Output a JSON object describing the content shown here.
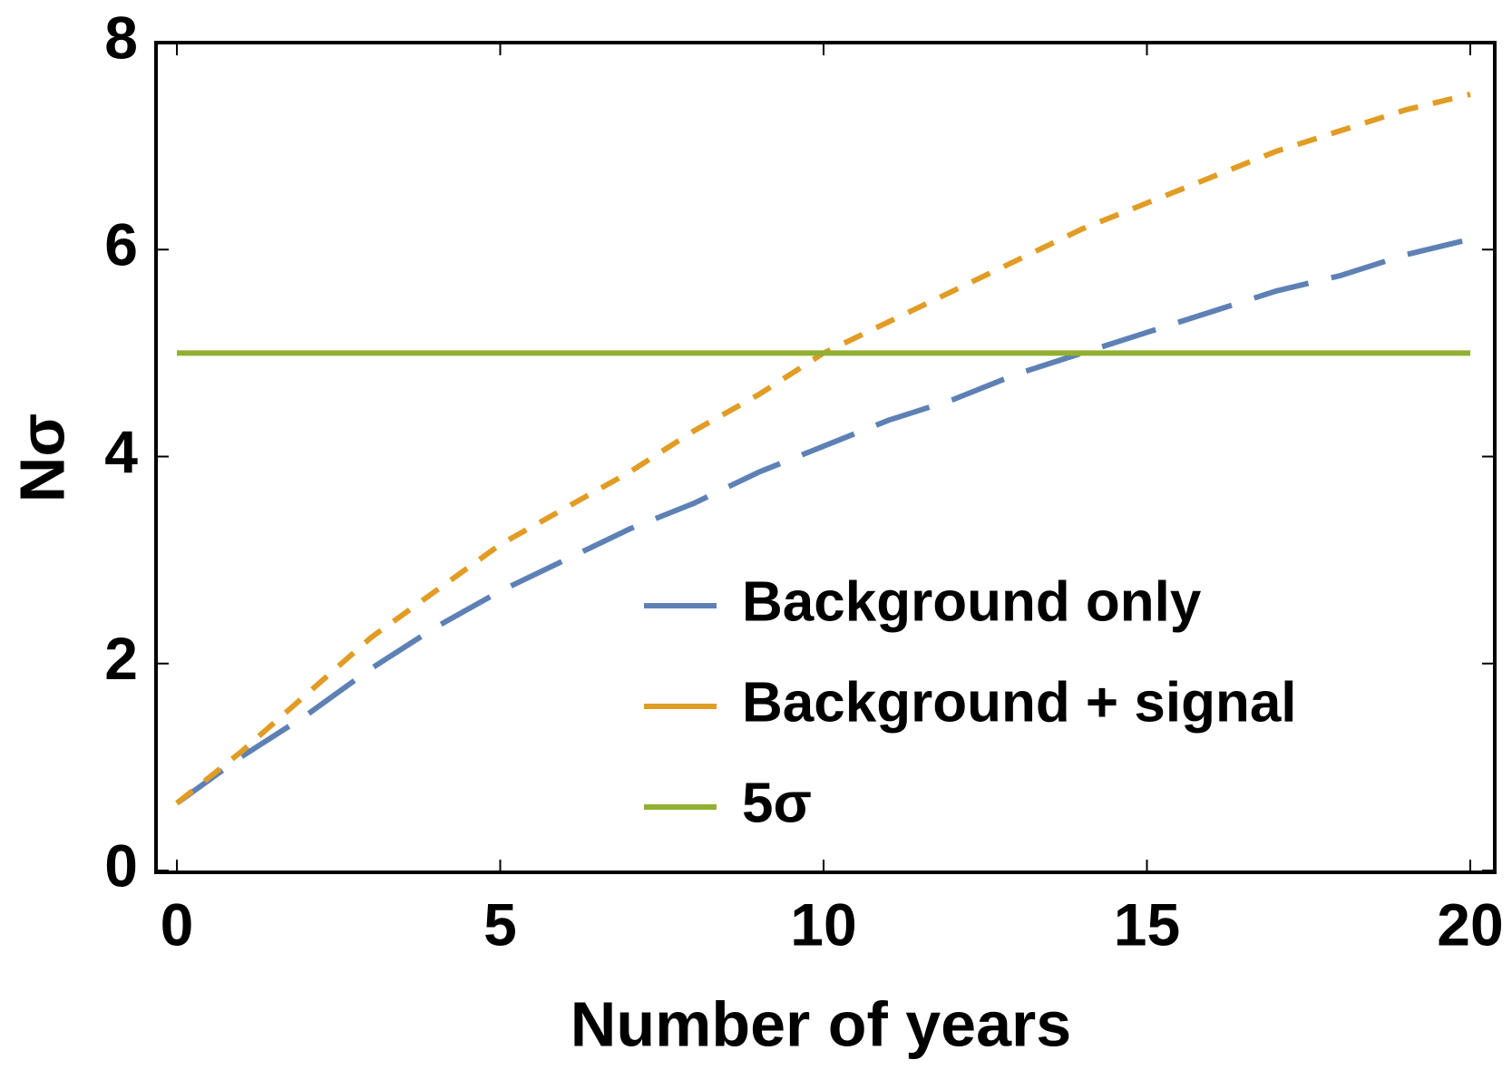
{
  "chart_data": {
    "type": "line",
    "xlabel": "Number of years",
    "ylabel": "Nσ",
    "x": [
      0,
      1,
      2,
      3,
      4,
      5,
      6,
      7,
      8,
      9,
      10,
      11,
      12,
      13,
      14,
      15,
      16,
      17,
      18,
      19,
      20
    ],
    "series": [
      {
        "name": "Background only",
        "color": "#5e81b5",
        "dash": "62 26",
        "values": [
          0.65,
          1.1,
          1.5,
          1.95,
          2.35,
          2.7,
          3.0,
          3.3,
          3.55,
          3.85,
          4.1,
          4.35,
          4.55,
          4.8,
          5.0,
          5.2,
          5.4,
          5.6,
          5.75,
          5.95,
          6.1
        ]
      },
      {
        "name": "Background + signal",
        "color": "#e19c24",
        "dash": "22 17",
        "values": [
          0.65,
          1.15,
          1.7,
          2.25,
          2.7,
          3.15,
          3.5,
          3.85,
          4.25,
          4.6,
          5.0,
          5.3,
          5.6,
          5.9,
          6.2,
          6.45,
          6.7,
          6.95,
          7.15,
          7.35,
          7.5
        ]
      },
      {
        "name": "5σ",
        "color": "#8fb032",
        "dash": "none",
        "values": [
          5,
          5,
          5,
          5,
          5,
          5,
          5,
          5,
          5,
          5,
          5,
          5,
          5,
          5,
          5,
          5,
          5,
          5,
          5,
          5,
          5
        ]
      }
    ],
    "xlim": [
      0,
      20
    ],
    "xticks": [
      0,
      5,
      10,
      15,
      20
    ],
    "ylim": [
      0,
      8
    ],
    "yticks": [
      0,
      2,
      4,
      6,
      8
    ]
  }
}
